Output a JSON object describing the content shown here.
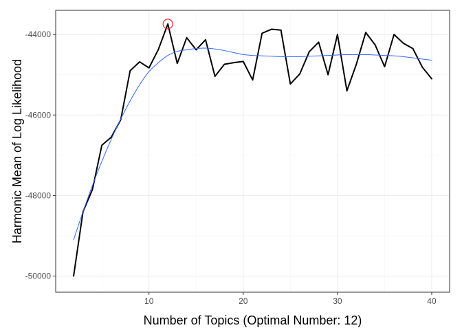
{
  "chart_data": {
    "type": "line",
    "title": "",
    "xlabel": "Number of Topics (Optimal Number: 12)",
    "ylabel": "Harmonic Mean of Log Likelihood",
    "xlim": [
      0.1,
      41.9
    ],
    "ylim": [
      -50400,
      -43400
    ],
    "x_ticks": [
      10,
      20,
      30,
      40
    ],
    "y_ticks": [
      -50000,
      -48000,
      -46000,
      -44000
    ],
    "x_tick_labels": [
      "10",
      "20",
      "30",
      "40"
    ],
    "y_tick_labels": [
      "-50000",
      "-48000",
      "-46000",
      "-44000"
    ],
    "grid": true,
    "legend": "none",
    "series": [
      {
        "style": "line",
        "color": "#000000",
        "x": [
          2,
          3,
          4,
          5,
          6,
          7,
          8,
          9,
          10,
          11,
          12,
          13,
          14,
          15,
          16,
          17,
          18,
          19,
          20,
          21,
          22,
          23,
          24,
          25,
          26,
          27,
          28,
          29,
          30,
          31,
          32,
          33,
          34,
          35,
          36,
          37,
          38,
          39,
          40
        ],
        "values": [
          -50000,
          -48400,
          -47850,
          -46750,
          -46550,
          -46120,
          -44900,
          -44680,
          -44830,
          -44370,
          -43740,
          -44720,
          -44080,
          -44380,
          -44130,
          -45040,
          -44740,
          -44700,
          -44670,
          -45130,
          -43970,
          -43870,
          -43890,
          -45230,
          -44980,
          -44430,
          -44190,
          -45000,
          -44000,
          -45400,
          -44740,
          -43950,
          -44260,
          -44800,
          -44000,
          -44220,
          -44350,
          -44810,
          -45100
        ]
      },
      {
        "style": "smooth",
        "color": "#3366ff",
        "x": [
          2,
          3,
          4,
          5,
          6,
          7,
          8,
          9,
          10,
          11,
          12,
          13,
          14,
          15,
          16,
          17,
          18,
          19,
          20,
          21,
          22,
          23,
          24,
          25,
          26,
          27,
          28,
          29,
          30,
          31,
          32,
          33,
          34,
          35,
          36,
          37,
          38,
          39,
          40
        ],
        "values": [
          -49100,
          -48400,
          -47750,
          -47150,
          -46600,
          -46100,
          -45650,
          -45250,
          -44920,
          -44700,
          -44520,
          -44420,
          -44380,
          -44350,
          -44340,
          -44360,
          -44400,
          -44450,
          -44500,
          -44520,
          -44530,
          -44540,
          -44550,
          -44550,
          -44550,
          -44540,
          -44530,
          -44520,
          -44510,
          -44500,
          -44500,
          -44500,
          -44510,
          -44520,
          -44530,
          -44550,
          -44580,
          -44610,
          -44640
        ]
      }
    ],
    "annotation": {
      "type": "circle-marker",
      "x": 12,
      "y": -43740,
      "color": "#ff0000"
    },
    "colors": {
      "panel_border": "#333333",
      "grid_major": "#ebebeb",
      "grid_minor": "#f5f5f5",
      "tick": "#333333"
    }
  }
}
